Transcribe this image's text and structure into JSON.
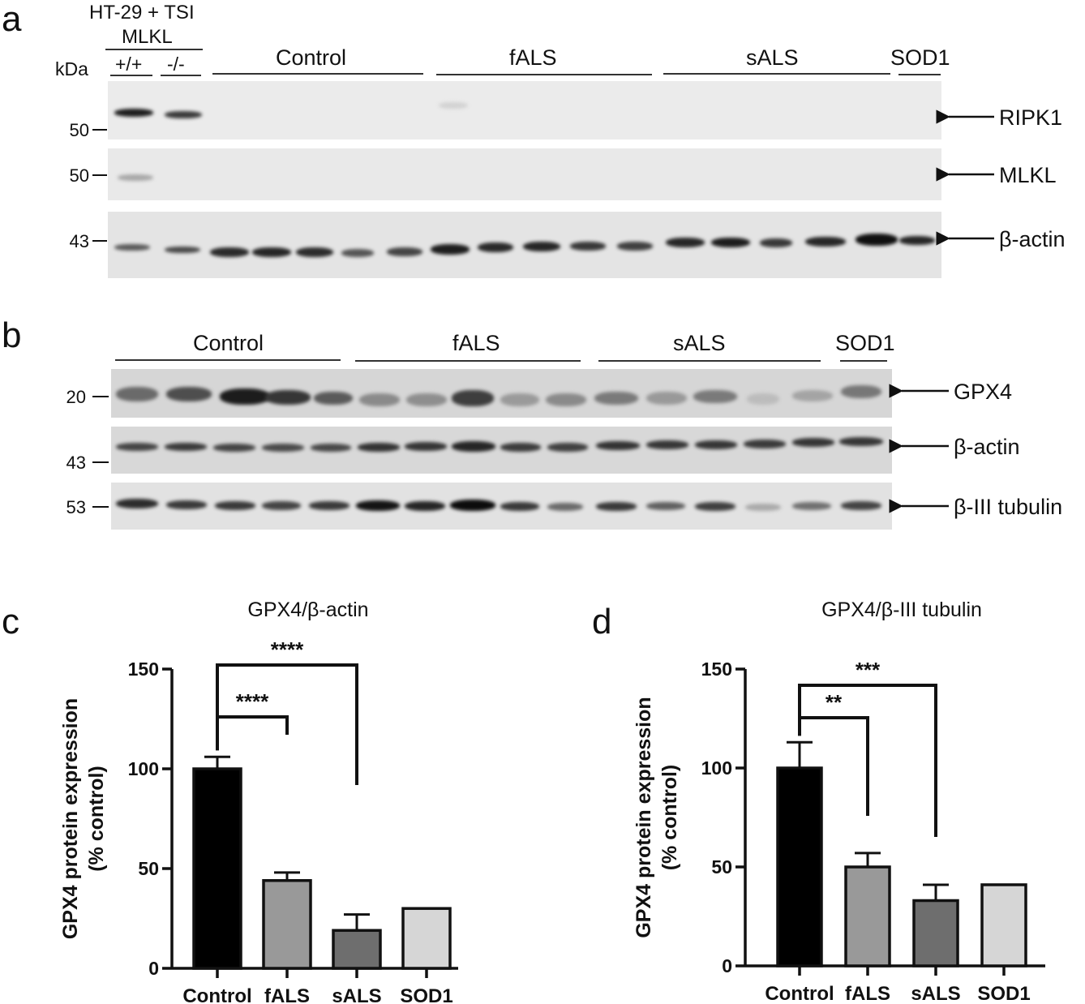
{
  "panels": {
    "a": "a",
    "b": "b",
    "c": "c",
    "d": "d"
  },
  "panel_a": {
    "cell_line": "HT-29 + TSI",
    "genotype_title": "MLKL",
    "genotypes": [
      "+/+",
      "-/-"
    ],
    "kda_label": "kDa",
    "groups": [
      "Control",
      "fALS",
      "sALS",
      "SOD1"
    ],
    "blots": [
      {
        "marker": "50",
        "target": "RIPK1"
      },
      {
        "marker": "50",
        "target": "MLKL"
      },
      {
        "marker": "43",
        "target": "β-actin"
      }
    ]
  },
  "panel_b": {
    "groups": [
      "Control",
      "fALS",
      "sALS",
      "SOD1"
    ],
    "blots": [
      {
        "marker": "20",
        "target": "GPX4"
      },
      {
        "marker": "43",
        "target": "β-actin"
      },
      {
        "marker": "53",
        "target": "β-III tubulin"
      }
    ]
  },
  "chart_data": [
    {
      "type": "bar",
      "title": "GPX4/β-actin",
      "ylabel_line1": "GPX4 protein expression",
      "ylabel_line2": "(% control)",
      "categories": [
        "Control",
        "fALS",
        "sALS",
        "SOD1"
      ],
      "values": [
        100,
        44,
        19,
        30
      ],
      "errors": [
        6,
        4,
        8,
        0
      ],
      "colors": [
        "#000000",
        "#999999",
        "#6e6e6e",
        "#d6d6d6"
      ],
      "ylim": [
        0,
        150
      ],
      "yticks": [
        "0",
        "50",
        "100",
        "150"
      ],
      "significance": [
        {
          "from": "Control",
          "to": "fALS",
          "label": "****"
        },
        {
          "from": "Control",
          "to": "sALS",
          "label": "****"
        }
      ]
    },
    {
      "type": "bar",
      "title": "GPX4/β-III tubulin",
      "ylabel_line1": "GPX4 protein expression",
      "ylabel_line2": "(% control)",
      "categories": [
        "Control",
        "fALS",
        "sALS",
        "SOD1"
      ],
      "values": [
        100,
        50,
        33,
        41
      ],
      "errors": [
        13,
        7,
        8,
        0
      ],
      "colors": [
        "#000000",
        "#999999",
        "#6e6e6e",
        "#d6d6d6"
      ],
      "ylim": [
        0,
        150
      ],
      "yticks": [
        "0",
        "50",
        "100",
        "150"
      ],
      "significance": [
        {
          "from": "Control",
          "to": "fALS",
          "label": "**"
        },
        {
          "from": "Control",
          "to": "sALS",
          "label": "***"
        }
      ]
    }
  ]
}
